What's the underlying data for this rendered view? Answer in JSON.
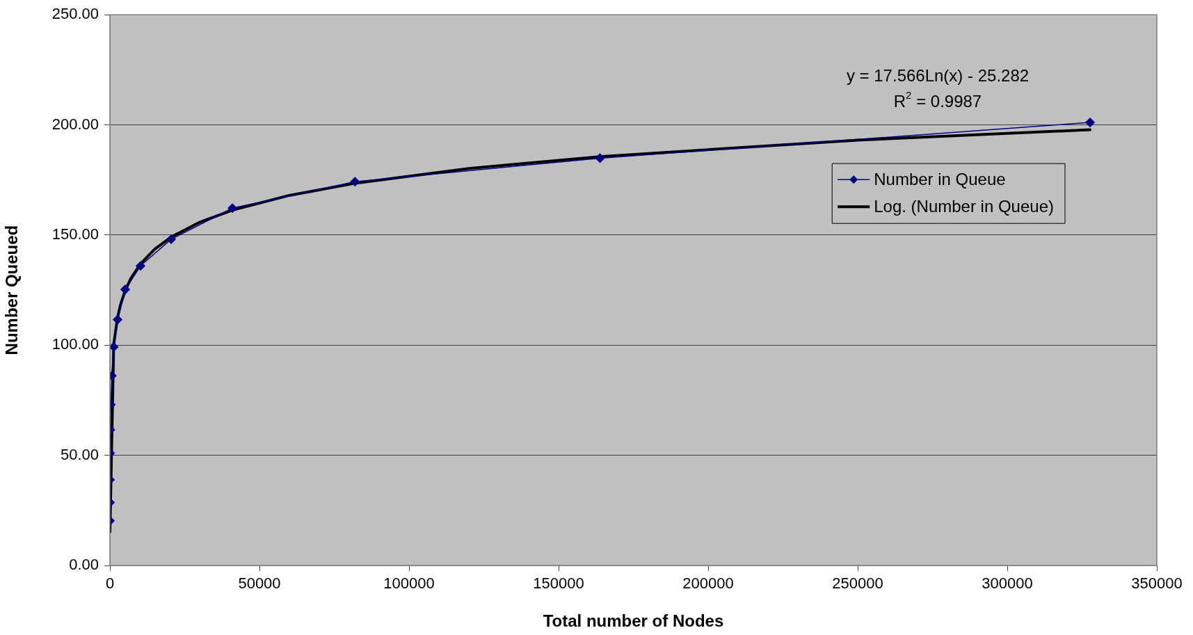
{
  "chart_data": {
    "type": "line",
    "xlabel": "Total number of Nodes",
    "ylabel": "Number Queued",
    "annotations": [
      "y = 17.566Ln(x) - 25.282",
      "R$^{2}$ = 0.9987"
    ],
    "xlim": [
      0,
      350000
    ],
    "xticks": [
      0,
      50000,
      100000,
      150000,
      200000,
      250000,
      300000,
      350000
    ],
    "ylim": [
      0,
      250
    ],
    "yticks": [
      {
        "value": 0,
        "label": "0.00"
      },
      {
        "value": 50,
        "label": "50.00"
      },
      {
        "value": 100,
        "label": "100.00"
      },
      {
        "value": 150,
        "label": "150.00"
      },
      {
        "value": 200,
        "label": "200.00"
      },
      {
        "value": 250,
        "label": "250.00"
      }
    ],
    "grid": "y",
    "legend": "top right",
    "series": [
      {
        "name": "Number in Queue",
        "color": "#000080",
        "marker": "diamond",
        "x": [
          10,
          20,
          40,
          80,
          160,
          320,
          640,
          1280,
          2560,
          5120,
          10240,
          20480,
          40960,
          81920,
          163840,
          327680
        ],
        "values": [
          20.3,
          28.6,
          38.9,
          51.0,
          61.6,
          73.0,
          86.1,
          99.2,
          111.6,
          125.3,
          136.0,
          148.1,
          162.2,
          174.2,
          184.9,
          201.1
        ]
      },
      {
        "name": "Log. (Number in Queue)",
        "color": "#000000",
        "type": "line",
        "marker": "none",
        "x": [
          10,
          1280,
          2560,
          3500,
          5120,
          7000,
          10240,
          15000,
          20480,
          30000,
          40960,
          60000,
          81920,
          120000,
          163840,
          250000,
          327680
        ],
        "values": [
          15.2,
          100.4,
          112.6,
          118.1,
          124.8,
          130.3,
          136.9,
          143.6,
          149.1,
          155.8,
          161.3,
          168.0,
          173.5,
          180.2,
          185.6,
          193.1,
          197.8
        ]
      }
    ]
  }
}
